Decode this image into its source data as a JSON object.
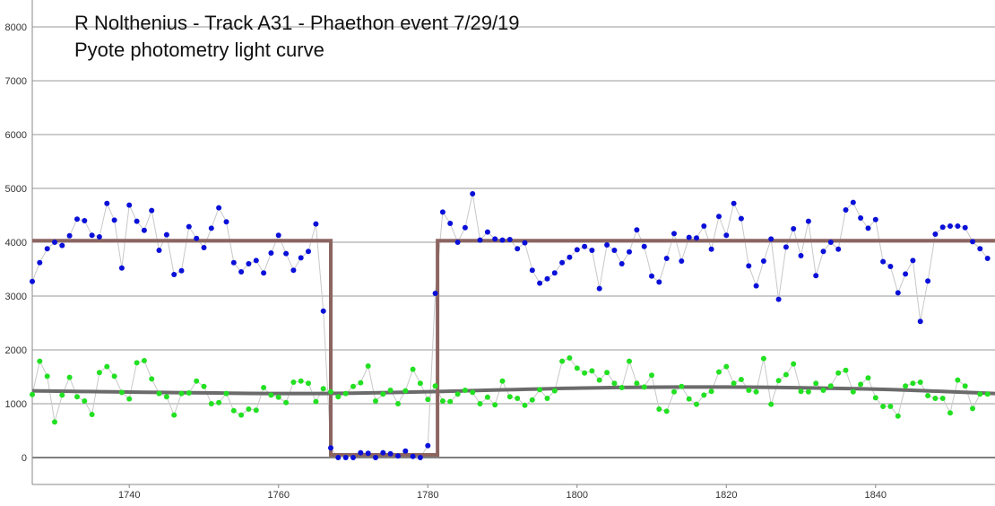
{
  "chart_data": {
    "type": "scatter",
    "title": "R Nolthenius - Track A31 - Phaethon event 7/29/19",
    "subtitle": "Pyote photometry light curve",
    "xlabel": "",
    "ylabel": "",
    "xlim": [
      1727,
      1856
    ],
    "ylim": [
      -500,
      8500
    ],
    "xticks": [
      1740,
      1760,
      1780,
      1800,
      1820,
      1840
    ],
    "yticks": [
      0,
      1000,
      2000,
      3000,
      4000,
      5000,
      6000,
      7000,
      8000
    ],
    "grid": true,
    "colors": {
      "target": "#0a10d8",
      "reference": "#22e022",
      "connector": "#c8c8c8",
      "model": "#8c6560",
      "trend": "#6b6b6b",
      "grid": "#9a9a9a",
      "zero": "#000000"
    },
    "series": [
      {
        "role": "target",
        "x_start": 1727,
        "values": [
          3270,
          3620,
          3880,
          4000,
          3940,
          4120,
          4430,
          4400,
          4130,
          4100,
          4720,
          4410,
          3520,
          4690,
          4390,
          4220,
          4590,
          3850,
          4140,
          3400,
          3470,
          4290,
          4070,
          3900,
          4260,
          4640,
          4380,
          3620,
          3450,
          3600,
          3660,
          3430,
          3800,
          4130,
          3790,
          3480,
          3710,
          3830,
          4340,
          2720,
          180,
          0,
          0,
          0,
          90,
          80,
          0,
          90,
          70,
          30,
          120,
          20,
          0,
          220,
          3050,
          4560,
          4350,
          4000,
          4270,
          4900,
          4040,
          4190,
          4060,
          4040,
          4050,
          3880,
          3990,
          3480,
          3240,
          3320,
          3430,
          3620,
          3720,
          3860,
          3920,
          3850,
          3140,
          3950,
          3850,
          3600,
          3820,
          4230,
          3920,
          3370,
          3260,
          3700,
          4160,
          3650,
          4090,
          4080,
          4300,
          3870,
          4480,
          4130,
          4720,
          4440,
          3560,
          3190,
          3650,
          4060,
          2940,
          3910,
          4250,
          3750,
          4390,
          3380,
          3830,
          4000,
          3870,
          4600,
          4740,
          4450,
          4260,
          4420,
          3640,
          3550,
          3060,
          3410,
          3660,
          2530,
          3280,
          4150,
          4280,
          4300,
          4300,
          4270,
          4010,
          3880,
          3700
        ],
        "model": {
          "baseline": 4030,
          "event_value": 50,
          "event_start": 1767,
          "event_end": 1781.3,
          "x_start": 1727,
          "x_end": 1856
        }
      },
      {
        "role": "reference",
        "x_start": 1727,
        "values": [
          1170,
          1790,
          1510,
          660,
          1160,
          1490,
          1130,
          1050,
          800,
          1580,
          1690,
          1510,
          1210,
          1090,
          1760,
          1800,
          1460,
          1190,
          1130,
          790,
          1190,
          1200,
          1420,
          1320,
          1000,
          1020,
          1190,
          870,
          790,
          900,
          880,
          1300,
          1160,
          1120,
          1020,
          1400,
          1420,
          1380,
          1040,
          1280,
          1220,
          1130,
          1190,
          1320,
          1390,
          1700,
          1050,
          1180,
          1250,
          1000,
          1240,
          1640,
          1380,
          1080,
          1330,
          1050,
          1040,
          1180,
          1250,
          1210,
          1000,
          1120,
          980,
          1420,
          1130,
          1100,
          970,
          1070,
          1260,
          1100,
          1240,
          1790,
          1850,
          1660,
          1570,
          1610,
          1440,
          1580,
          1380,
          1300,
          1790,
          1380,
          1310,
          1530,
          900,
          860,
          1220,
          1320,
          1090,
          990,
          1160,
          1230,
          1590,
          1690,
          1380,
          1450,
          1250,
          1220,
          1840,
          990,
          1430,
          1540,
          1740,
          1230,
          1220,
          1380,
          1250,
          1330,
          1570,
          1620,
          1220,
          1360,
          1480,
          1110,
          950,
          950,
          770,
          1330,
          1380,
          1400,
          1150,
          1100,
          1100,
          830,
          1440,
          1330,
          910,
          1180,
          1180
        ],
        "trend": {
          "x": [
            1727,
            1766,
            1800,
            1820,
            1840,
            1856
          ],
          "y": [
            1240,
            1190,
            1290,
            1310,
            1270,
            1190
          ]
        }
      }
    ]
  }
}
